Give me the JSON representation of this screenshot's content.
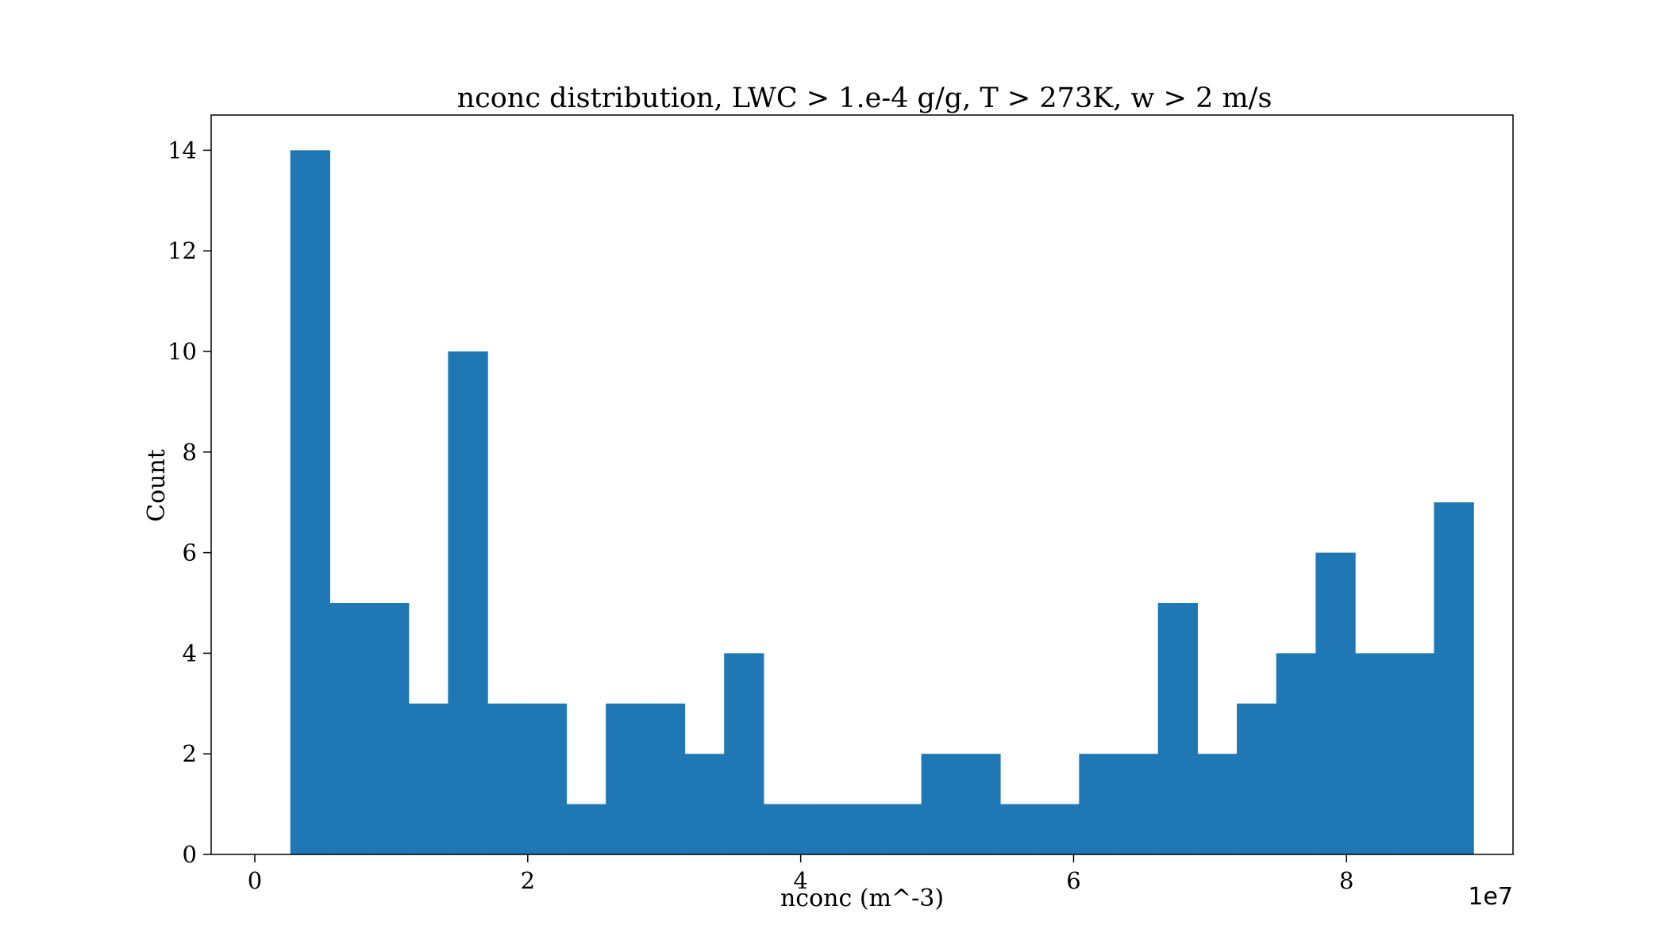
{
  "chart_data": {
    "type": "bar",
    "title": "nconc distribution, LWC > 1.e-4 g/g, T > 273K, w > 2 m/s",
    "xlabel": "nconc (m^-3)",
    "ylabel": "Count",
    "x_offset_label": "1e7",
    "xlim": [
      -0.32,
      9.22
    ],
    "ylim": [
      0,
      14.7
    ],
    "x_ticks": [
      0,
      2,
      4,
      6,
      8
    ],
    "y_ticks": [
      0,
      2,
      4,
      6,
      8,
      10,
      12,
      14
    ],
    "x_tick_labels": [
      "0",
      "2",
      "4",
      "6",
      "8"
    ],
    "y_tick_labels": [
      "0",
      "2",
      "4",
      "6",
      "8",
      "10",
      "12",
      "14"
    ],
    "bin_start": 0.26,
    "bin_width": 0.289,
    "values": [
      14,
      5,
      5,
      3,
      10,
      3,
      3,
      1,
      3,
      3,
      2,
      4,
      1,
      1,
      1,
      1,
      2,
      2,
      1,
      1,
      2,
      2,
      5,
      2,
      3,
      4,
      6,
      4,
      4,
      7
    ],
    "bar_color": "#1f77b4",
    "grid": false,
    "legend": "none"
  }
}
